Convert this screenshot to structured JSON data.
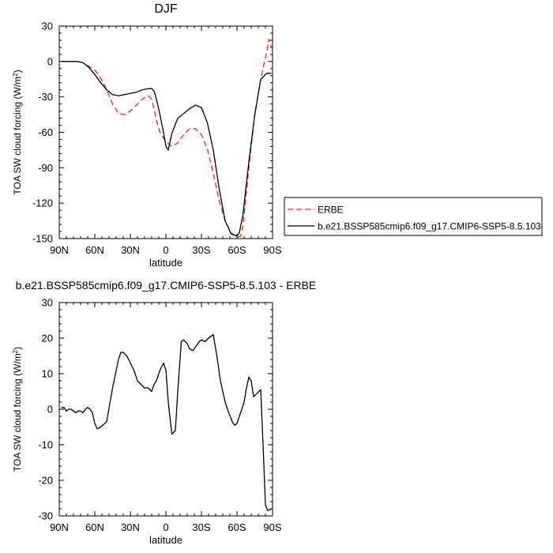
{
  "chart_data": [
    {
      "type": "line",
      "title": "DJF",
      "xlabel": "latitude",
      "ylabel": "TOA SW cloud forcing (W/m",
      "ylabel_sup": "2",
      "ylabel_end": ")",
      "xlim": [
        90,
        -90
      ],
      "ylim": [
        -150,
        30
      ],
      "xticks": [
        {
          "v": 90,
          "label": "90N"
        },
        {
          "v": 60,
          "label": "60N"
        },
        {
          "v": 30,
          "label": "30N"
        },
        {
          "v": 0,
          "label": "0"
        },
        {
          "v": -30,
          "label": "30S"
        },
        {
          "v": -60,
          "label": "60S"
        },
        {
          "v": -90,
          "label": "90S"
        }
      ],
      "yticks": [
        {
          "v": 30,
          "label": "30"
        },
        {
          "v": 0,
          "label": "0"
        },
        {
          "v": -30,
          "label": "-30"
        },
        {
          "v": -60,
          "label": "-60"
        },
        {
          "v": -90,
          "label": "-90"
        },
        {
          "v": -120,
          "label": "-120"
        },
        {
          "v": -150,
          "label": "-150"
        }
      ],
      "legend": "right",
      "series": [
        {
          "name": "ERBE",
          "color": "#e8241c",
          "dash": true,
          "x": [
            88,
            80,
            75,
            70,
            65,
            60,
            55,
            50,
            45,
            40,
            35,
            30,
            25,
            20,
            15,
            12,
            10,
            8,
            5,
            0,
            -5,
            -10,
            -15,
            -20,
            -25,
            -30,
            -35,
            -40,
            -45,
            -50,
            -55,
            -60,
            -63,
            -65,
            -70,
            -75,
            -80,
            -85,
            -87,
            -89
          ],
          "y": [
            0,
            0,
            0,
            -1,
            -4,
            -7,
            -14,
            -24,
            -36,
            -44,
            -45,
            -42,
            -37,
            -32,
            -29,
            -32,
            -40,
            -50,
            -60,
            -68,
            -72,
            -69,
            -62,
            -57,
            -57,
            -62,
            -74,
            -95,
            -118,
            -135,
            -145,
            -149,
            -148,
            -140,
            -90,
            -45,
            -15,
            8,
            19,
            12
          ]
        },
        {
          "name": "b.e21.BSSP585cmip6.f09_g17.CMIP6-SSP5-8.5.103",
          "color": "#000000",
          "dash": false,
          "x": [
            88,
            80,
            75,
            70,
            65,
            60,
            55,
            50,
            45,
            40,
            35,
            30,
            25,
            20,
            15,
            12,
            10,
            8,
            5,
            2,
            0,
            -2,
            -5,
            -10,
            -15,
            -20,
            -25,
            -30,
            -35,
            -40,
            -45,
            -50,
            -55,
            -60,
            -62,
            -65,
            -70,
            -75,
            -80,
            -85,
            -89
          ],
          "y": [
            0,
            0,
            0,
            -1,
            -5,
            -11,
            -18,
            -24,
            -28,
            -29,
            -28,
            -27,
            -26,
            -24,
            -23,
            -23,
            -25,
            -32,
            -45,
            -60,
            -72,
            -75,
            -61,
            -48,
            -44,
            -40,
            -37,
            -39,
            -52,
            -75,
            -108,
            -135,
            -146,
            -148,
            -145,
            -130,
            -85,
            -45,
            -15,
            -10,
            -10
          ]
        }
      ]
    },
    {
      "type": "line",
      "title": "b.e21.BSSP585cmip6.f09_g17.CMIP6-SSP5-8.5.103 - ERBE",
      "xlabel": "latitude",
      "ylabel": "TOA SW cloud forcing (W/m",
      "ylabel_sup": "2",
      "ylabel_end": ")",
      "xlim": [
        90,
        -90
      ],
      "ylim": [
        -30,
        30
      ],
      "xticks": [
        {
          "v": 90,
          "label": "90N"
        },
        {
          "v": 60,
          "label": "60N"
        },
        {
          "v": 30,
          "label": "30N"
        },
        {
          "v": 0,
          "label": "0"
        },
        {
          "v": -30,
          "label": "30S"
        },
        {
          "v": -60,
          "label": "60S"
        },
        {
          "v": -90,
          "label": "90S"
        }
      ],
      "yticks": [
        {
          "v": 30,
          "label": "30"
        },
        {
          "v": 20,
          "label": "20"
        },
        {
          "v": 10,
          "label": "10"
        },
        {
          "v": 0,
          "label": "0"
        },
        {
          "v": -10,
          "label": "-10"
        },
        {
          "v": -20,
          "label": "-20"
        },
        {
          "v": -30,
          "label": "-30"
        }
      ],
      "series": [
        {
          "color": "#000000",
          "dash": false,
          "x": [
            88,
            86,
            84,
            82,
            80,
            78,
            76,
            74,
            72,
            70,
            68,
            66,
            64,
            62,
            60,
            58,
            55,
            50,
            45,
            40,
            38,
            36,
            33,
            30,
            27,
            24,
            21,
            18,
            15,
            12,
            10,
            8,
            5,
            2,
            0,
            -2,
            -5,
            -8,
            -10,
            -13,
            -15,
            -18,
            -20,
            -23,
            -25,
            -28,
            -30,
            -33,
            -36,
            -38,
            -40,
            -43,
            -46,
            -50,
            -53,
            -56,
            -58,
            -60,
            -63,
            -66,
            -68,
            -70,
            -72,
            -74,
            -77,
            -80,
            -82,
            -84,
            -86,
            -89
          ],
          "y": [
            0.5,
            0.5,
            -0.5,
            0,
            0,
            -0.5,
            -1,
            -0.5,
            -0.5,
            -1,
            0,
            0.5,
            0,
            -1,
            -4,
            -5.5,
            -5,
            -3.5,
            6,
            14,
            16,
            16,
            15,
            13,
            11,
            8,
            7,
            6,
            6,
            5,
            7,
            8,
            11,
            13,
            11,
            2,
            -7,
            -6,
            5,
            19,
            19.5,
            18.5,
            17,
            16.5,
            17.5,
            19,
            19.5,
            19,
            20,
            20.5,
            21,
            15,
            8,
            2,
            -1,
            -3.5,
            -4.5,
            -4,
            -1,
            2,
            6,
            9,
            8,
            3.5,
            4.5,
            5.5,
            -10,
            -27,
            -28.5,
            -28
          ]
        }
      ]
    }
  ]
}
